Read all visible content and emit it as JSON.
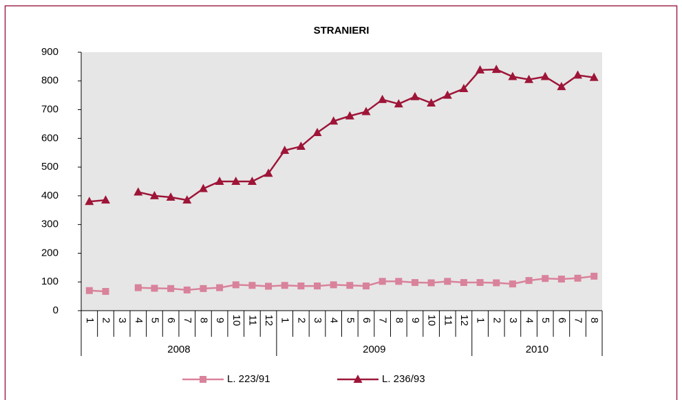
{
  "chart_data": {
    "type": "line",
    "title": "STRANIERI",
    "categories": [
      "1",
      "2",
      "3",
      "4",
      "5",
      "6",
      "7",
      "8",
      "9",
      "10",
      "11",
      "12",
      "1",
      "2",
      "3",
      "4",
      "5",
      "6",
      "7",
      "8",
      "9",
      "10",
      "11",
      "12",
      "1",
      "2",
      "3",
      "4",
      "5",
      "6",
      "7",
      "8"
    ],
    "groups": [
      "2008",
      "2009",
      "2010"
    ],
    "series": [
      {
        "name": "L. 223/91",
        "color": "#d9829b",
        "marker": "square",
        "values": [
          70,
          67,
          null,
          80,
          78,
          77,
          72,
          77,
          80,
          90,
          88,
          85,
          88,
          86,
          86,
          90,
          88,
          86,
          102,
          102,
          98,
          97,
          102,
          98,
          98,
          97,
          93,
          105,
          112,
          110,
          113,
          120
        ]
      },
      {
        "name": "L. 236/93",
        "color": "#9e1538",
        "marker": "triangle",
        "values": [
          380,
          385,
          null,
          413,
          400,
          395,
          385,
          425,
          450,
          450,
          450,
          478,
          558,
          572,
          620,
          660,
          678,
          693,
          735,
          720,
          745,
          723,
          750,
          773,
          838,
          840,
          815,
          805,
          815,
          780,
          820,
          812
        ]
      }
    ],
    "ylim": [
      0,
      900
    ],
    "yticks": [
      0,
      100,
      200,
      300,
      400,
      500,
      600,
      700,
      800,
      900
    ],
    "grid": false,
    "legend": "bottom"
  }
}
